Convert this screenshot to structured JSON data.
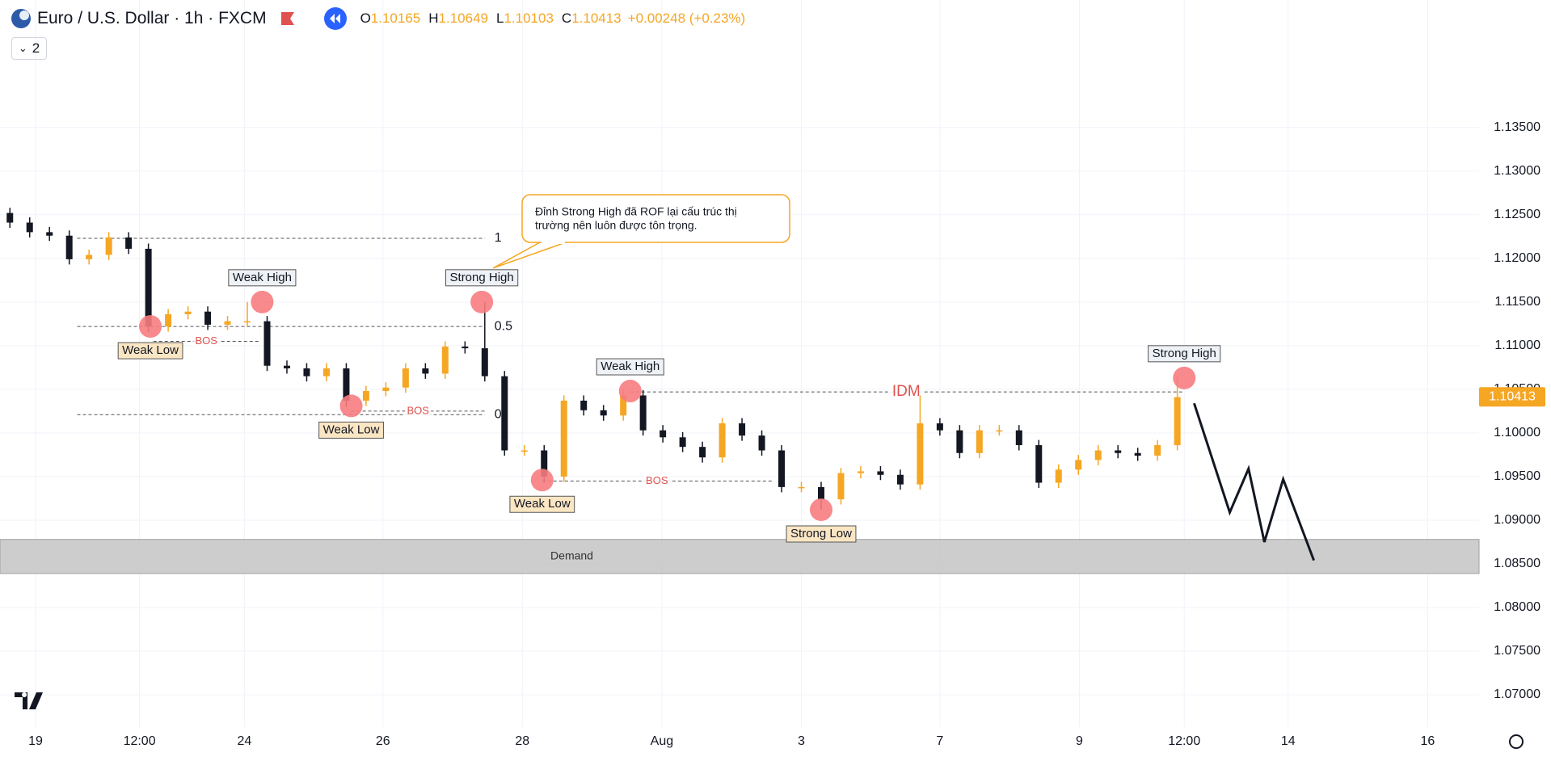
{
  "chart_data": {
    "type": "candlestick",
    "title": "Euro / U.S. Dollar · 1h · FXCM",
    "ohlc": [
      {
        "label": "O",
        "value": 1.10165
      },
      {
        "label": "H",
        "value": 1.10649
      },
      {
        "label": "L",
        "value": 1.10103
      },
      {
        "label": "C",
        "value": 1.10413
      }
    ],
    "change": "+0.00248 (+0.23%)",
    "indicators_count": 2,
    "last_price": 1.10413,
    "up_color": "#f5a623",
    "down_color": "#131722",
    "grid": true,
    "xlim": [
      -0.5,
      74.25
    ],
    "ylim": [
      1.0663,
      1.1496
    ],
    "xticks": [
      {
        "value": 1.3,
        "label": "19"
      },
      {
        "value": 6.55,
        "label": "12:00"
      },
      {
        "value": 11.85,
        "label": "24"
      },
      {
        "value": 18.85,
        "label": "26"
      },
      {
        "value": 25.9,
        "label": "28"
      },
      {
        "value": 32.95,
        "label": "Aug"
      },
      {
        "value": 40,
        "label": "3"
      },
      {
        "value": 47,
        "label": "7"
      },
      {
        "value": 54.05,
        "label": "9"
      },
      {
        "value": 59.35,
        "label": "12:00"
      },
      {
        "value": 64.6,
        "label": "14"
      },
      {
        "value": 71.65,
        "label": "16"
      }
    ],
    "yticks": [
      {
        "value": 1.07,
        "label": "1.07000"
      },
      {
        "value": 1.075,
        "label": "1.07500"
      },
      {
        "value": 1.08,
        "label": "1.08000"
      },
      {
        "value": 1.085,
        "label": "1.08500"
      },
      {
        "value": 1.09,
        "label": "1.09000"
      },
      {
        "value": 1.095,
        "label": "1.09500"
      },
      {
        "value": 1.1,
        "label": "1.10000"
      },
      {
        "value": 1.105,
        "label": "1.10500"
      },
      {
        "value": 1.11,
        "label": "1.11000"
      },
      {
        "value": 1.115,
        "label": "1.11500"
      },
      {
        "value": 1.12,
        "label": "1.12000"
      },
      {
        "value": 1.125,
        "label": "1.12500"
      },
      {
        "value": 1.13,
        "label": "1.13000"
      },
      {
        "value": 1.135,
        "label": "1.13500"
      }
    ],
    "candles": {
      "x": [
        0,
        1,
        2,
        3,
        4,
        5,
        6,
        7,
        8,
        9,
        10,
        11,
        12,
        13,
        14,
        15,
        16,
        17,
        18,
        19,
        20,
        21,
        22,
        23,
        24,
        25,
        26,
        27,
        28,
        29,
        30,
        31,
        32,
        33,
        34,
        35,
        36,
        37,
        38,
        39,
        40,
        41,
        42,
        43,
        44,
        45,
        46,
        47,
        48,
        49,
        50,
        51,
        52,
        53,
        54,
        55,
        56,
        57,
        58,
        59
      ],
      "open": [
        1.1252,
        1.1241,
        1.123,
        1.1226,
        1.1199,
        1.1204,
        1.1224,
        1.1211,
        1.1122,
        1.1136,
        1.1139,
        1.1124,
        1.1128,
        1.1128,
        1.1077,
        1.1074,
        1.1065,
        1.1074,
        1.1037,
        1.1048,
        1.1052,
        1.1074,
        1.1068,
        1.1099,
        1.1097,
        1.1065,
        1.098,
        1.098,
        1.095,
        1.1037,
        1.1026,
        1.102,
        1.1043,
        1.1003,
        1.0995,
        1.0984,
        1.0972,
        1.1011,
        1.0997,
        1.098,
        1.0938,
        1.0938,
        1.0924,
        1.0954,
        1.0956,
        1.0952,
        1.0941,
        1.1011,
        1.1003,
        1.0977,
        1.1003,
        1.1003,
        1.0986,
        1.0943,
        1.0958,
        1.0969,
        1.098,
        1.0977,
        1.0974,
        1.0986
      ],
      "high": [
        1.1258,
        1.1247,
        1.1236,
        1.1232,
        1.121,
        1.123,
        1.123,
        1.1217,
        1.1142,
        1.1145,
        1.1145,
        1.1134,
        1.115,
        1.1134,
        1.1083,
        1.108,
        1.108,
        1.108,
        1.1054,
        1.1058,
        1.108,
        1.108,
        1.1105,
        1.1105,
        1.115,
        1.1071,
        1.0986,
        1.0986,
        1.1043,
        1.1043,
        1.1032,
        1.105,
        1.1049,
        1.1009,
        1.1001,
        1.099,
        1.1017,
        1.1017,
        1.1003,
        1.0986,
        1.0944,
        1.0944,
        1.096,
        1.0962,
        1.0962,
        1.0958,
        1.1043,
        1.1017,
        1.1009,
        1.1009,
        1.1009,
        1.1009,
        1.0992,
        1.0964,
        1.0975,
        1.0986,
        1.0986,
        1.0983,
        1.0992,
        1.1065
      ],
      "low": [
        1.1235,
        1.1224,
        1.122,
        1.1193,
        1.1193,
        1.1198,
        1.1205,
        1.1116,
        1.1116,
        1.113,
        1.1118,
        1.1118,
        1.1122,
        1.1071,
        1.1068,
        1.1059,
        1.1059,
        1.103,
        1.1031,
        1.1042,
        1.1046,
        1.1062,
        1.1062,
        1.1091,
        1.1059,
        1.0974,
        1.0974,
        1.0943,
        1.0944,
        1.102,
        1.1014,
        1.1014,
        1.0997,
        1.0989,
        1.0978,
        1.0966,
        1.0966,
        1.0991,
        1.0974,
        1.0932,
        1.0932,
        1.0912,
        1.0918,
        1.0948,
        1.0946,
        1.0935,
        1.0935,
        1.0997,
        1.0971,
        1.0971,
        1.0997,
        1.098,
        1.0937,
        1.0937,
        1.0952,
        1.0963,
        1.0971,
        1.0968,
        1.0968,
        1.098
      ],
      "close": [
        1.1241,
        1.123,
        1.1226,
        1.1199,
        1.1204,
        1.1224,
        1.1211,
        1.1122,
        1.1136,
        1.1139,
        1.1124,
        1.1128,
        1.1128,
        1.1077,
        1.1074,
        1.1065,
        1.1074,
        1.1037,
        1.1048,
        1.1052,
        1.1074,
        1.1068,
        1.1099,
        1.1097,
        1.1065,
        1.098,
        1.098,
        1.095,
        1.1037,
        1.1026,
        1.102,
        1.1043,
        1.1003,
        1.0995,
        1.0984,
        1.0972,
        1.1011,
        1.0997,
        1.098,
        1.0938,
        1.0938,
        1.0924,
        1.0954,
        1.0956,
        1.0952,
        1.0941,
        1.1011,
        1.1003,
        1.0977,
        1.1003,
        1.1003,
        1.0986,
        1.0943,
        1.0958,
        1.0969,
        1.098,
        1.0977,
        1.0974,
        1.0986,
        1.1041
      ]
    },
    "marker_color": "#f77c7f",
    "swings": [
      {
        "text": "Weak Low",
        "x": 7.1,
        "y": 1.1122,
        "position": "below"
      },
      {
        "text": "Weak High",
        "x": 12.75,
        "y": 1.115,
        "position": "above"
      },
      {
        "text": "Weak Low",
        "x": 17.25,
        "y": 1.1031,
        "position": "below"
      },
      {
        "text": "Strong High",
        "x": 23.85,
        "y": 1.115,
        "position": "above"
      },
      {
        "text": "Weak Low",
        "x": 26.9,
        "y": 1.0946,
        "position": "below"
      },
      {
        "text": "Weak High",
        "x": 31.35,
        "y": 1.1048,
        "position": "above"
      },
      {
        "text": "Strong Low",
        "x": 41,
        "y": 1.0912,
        "position": "below"
      },
      {
        "text": "Strong High",
        "x": 59.35,
        "y": 1.1063,
        "position": "above"
      }
    ],
    "levels": [
      {
        "text": "1",
        "y": 1.1223,
        "x0": 3.4,
        "x1": 24,
        "color": "#131722",
        "label_position": "end"
      },
      {
        "text": "0.5",
        "y": 1.1122,
        "x0": 3.4,
        "x1": 24,
        "color": "#131722",
        "label_position": "end"
      },
      {
        "text": "0",
        "y": 1.1021,
        "x0": 3.4,
        "x1": 24,
        "color": "#131722",
        "label_position": "end"
      },
      {
        "text": "BOS",
        "y": 1.1105,
        "x0": 7.25,
        "x1": 12.6,
        "color": "#e0524f",
        "label_position": "center"
      },
      {
        "text": "BOS",
        "y": 1.1025,
        "x0": 17.25,
        "x1": 24,
        "color": "#e0524f",
        "label_position": "center"
      },
      {
        "text": "BOS",
        "y": 1.0945,
        "x0": 26.9,
        "x1": 38.5,
        "color": "#e0524f",
        "label_position": "center"
      },
      {
        "text": "IDM",
        "y": 1.1047,
        "x0": 31.35,
        "x1": 59.25,
        "color": "#e0524f",
        "label_position": "center"
      }
    ],
    "zone": {
      "text": "Demand",
      "y0": 1.0839,
      "y1": 1.0878,
      "x": 28.4,
      "color": "#c8c8c8"
    },
    "projection": {
      "x": [
        59.85,
        61.65,
        62.6,
        63.4,
        64.35,
        65.9
      ],
      "y": [
        1.1034,
        1.0909,
        1.0959,
        1.0875,
        1.0947,
        1.0854
      ],
      "color": "#131722"
    },
    "callout": {
      "lines": [
        "Đỉnh Strong High đã ROF lại cấu trúc thị",
        "trường nên luôn được tôn trọng."
      ]
    }
  }
}
